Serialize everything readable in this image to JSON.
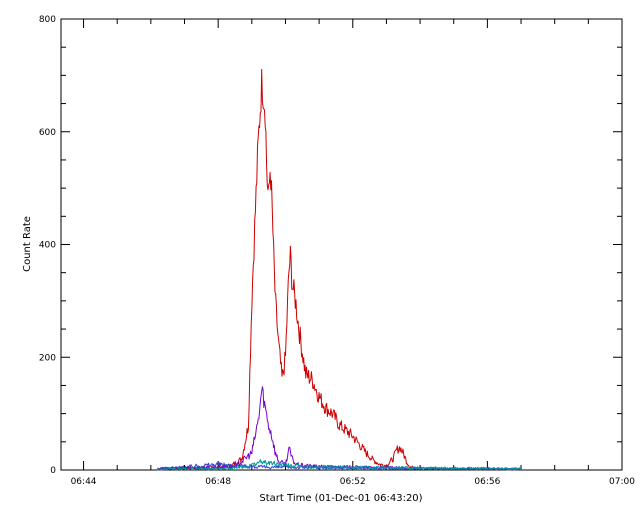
{
  "chart_data": {
    "type": "line",
    "title": "",
    "xlabel": "Start Time (01-Dec-01 06:43:20)",
    "ylabel": "Count Rate",
    "xlim_minutes": [
      403.33,
      420.0
    ],
    "ylim": [
      0,
      800
    ],
    "x_ticks": [
      {
        "label": "06:44",
        "minutes": 404
      },
      {
        "label": "06:48",
        "minutes": 408
      },
      {
        "label": "06:52",
        "minutes": 412
      },
      {
        "label": "06:56",
        "minutes": 416
      },
      {
        "label": "07:00",
        "minutes": 420
      }
    ],
    "y_ticks": [
      0,
      200,
      400,
      600,
      800
    ],
    "grid": false,
    "series": [
      {
        "color": "#cc0000",
        "x": [
          406.2,
          407.0,
          408.0,
          408.4,
          408.7,
          408.9,
          409.0,
          409.1,
          409.2,
          409.3,
          409.4,
          409.45,
          409.5,
          409.55,
          409.6,
          409.65,
          409.7,
          409.8,
          409.9,
          410.0,
          410.1,
          410.15,
          410.2,
          410.3,
          410.4,
          410.5,
          410.6,
          410.8,
          411.0,
          411.2,
          411.4,
          411.6,
          411.8,
          412.0,
          412.2,
          412.4,
          412.6,
          412.8,
          413.0,
          413.2,
          413.3,
          413.4,
          413.5,
          413.6,
          413.7,
          413.8,
          414.0,
          414.5,
          415.0,
          416.0,
          417.0
        ],
        "y": [
          2,
          3,
          5,
          8,
          20,
          80,
          300,
          450,
          590,
          690,
          640,
          520,
          480,
          540,
          470,
          380,
          300,
          220,
          160,
          200,
          350,
          380,
          330,
          300,
          250,
          210,
          170,
          160,
          130,
          110,
          100,
          80,
          70,
          60,
          45,
          30,
          18,
          10,
          8,
          20,
          35,
          40,
          30,
          15,
          6,
          4,
          3,
          2,
          2,
          2,
          1
        ]
      },
      {
        "color": "#7700cc",
        "x": [
          406.2,
          407.5,
          408.5,
          409.0,
          409.2,
          409.3,
          409.4,
          409.5,
          409.6,
          409.7,
          409.8,
          410.0,
          410.1,
          410.2,
          410.3,
          410.5,
          411.0,
          412.0,
          413.0,
          414.0,
          415.0,
          416.0,
          417.0
        ],
        "y": [
          3,
          4,
          6,
          30,
          90,
          145,
          110,
          80,
          60,
          30,
          15,
          10,
          38,
          20,
          10,
          8,
          6,
          5,
          4,
          3,
          2,
          2,
          1
        ]
      },
      {
        "color": "#3344cc",
        "x": [
          406.2,
          407.0,
          407.5,
          408.0,
          408.5,
          409.0,
          409.5,
          410.0,
          411.0,
          412.0,
          413.0,
          414.0,
          415.0,
          416.0,
          417.0
        ],
        "y": [
          2,
          5,
          8,
          10,
          8,
          6,
          5,
          5,
          4,
          4,
          3,
          3,
          2,
          2,
          2
        ]
      },
      {
        "color": "#009999",
        "x": [
          406.2,
          407.5,
          408.5,
          409.0,
          409.3,
          409.6,
          410.0,
          410.5,
          411.0,
          412.0,
          413.0,
          414.0,
          415.0,
          416.0,
          417.0
        ],
        "y": [
          1,
          2,
          3,
          8,
          15,
          12,
          9,
          6,
          5,
          5,
          4,
          4,
          3,
          3,
          2
        ]
      }
    ]
  }
}
